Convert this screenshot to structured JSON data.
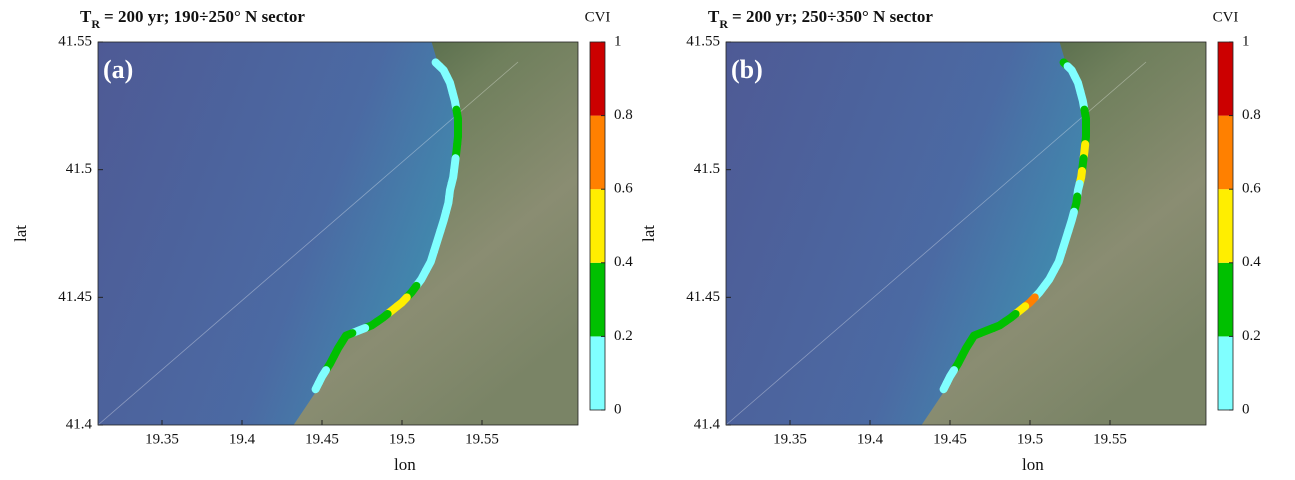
{
  "chart_data": [
    {
      "type": "coastline",
      "title_prefix": "T",
      "title_subscript": "R",
      "title_rest": "= 200 yr; 190÷250° N sector",
      "panel_label": "(a)",
      "xlabel": "lon",
      "ylabel": "lat",
      "x": [
        19.521,
        19.526,
        19.53,
        19.533,
        19.535,
        19.535,
        19.534,
        19.533,
        19.532,
        19.53,
        19.529,
        19.526,
        19.522,
        19.518,
        19.512,
        19.506,
        19.5,
        19.494,
        19.488,
        19.481,
        19.473,
        19.465,
        19.46,
        19.455,
        19.45,
        19.446
      ],
      "y": [
        41.542,
        41.539,
        41.534,
        41.527,
        41.52,
        41.513,
        41.507,
        41.502,
        41.497,
        41.492,
        41.487,
        41.48,
        41.472,
        41.464,
        41.457,
        41.452,
        41.448,
        41.445,
        41.442,
        41.439,
        41.437,
        41.435,
        41.43,
        41.424,
        41.419,
        41.414
      ],
      "values": [
        0.1,
        0.1,
        0.1,
        0.1,
        0.3,
        0.3,
        0.3,
        0.1,
        0.1,
        0.1,
        0.1,
        0.1,
        0.1,
        0.1,
        0.1,
        0.3,
        0.5,
        0.5,
        0.3,
        0.3,
        0.1,
        0.3,
        0.3,
        0.3,
        0.1,
        0.1
      ],
      "xlim": [
        19.31,
        19.61
      ],
      "ylim": [
        41.4,
        41.55
      ],
      "xticks": [
        19.35,
        19.4,
        19.45,
        19.5,
        19.55
      ],
      "yticks": [
        41.4,
        41.45,
        41.5,
        41.55
      ],
      "colorbar_label": "CVI",
      "clim": [
        0,
        1
      ],
      "cticks": [
        0,
        0.2,
        0.4,
        0.6,
        0.8,
        1
      ],
      "colors": [
        "#80ffff",
        "#00c000",
        "#ffee00",
        "#ff8000",
        "#cc0000"
      ]
    },
    {
      "type": "coastline",
      "title_prefix": "T",
      "title_subscript": "R",
      "title_rest": "= 200 yr; 250÷350° N sector",
      "panel_label": "(b)",
      "xlabel": "lon",
      "ylabel": "lat",
      "x": [
        19.521,
        19.526,
        19.53,
        19.533,
        19.535,
        19.535,
        19.534,
        19.533,
        19.532,
        19.53,
        19.529,
        19.526,
        19.522,
        19.518,
        19.512,
        19.506,
        19.5,
        19.494,
        19.488,
        19.481,
        19.473,
        19.465,
        19.46,
        19.455,
        19.45,
        19.446
      ],
      "y": [
        41.542,
        41.539,
        41.534,
        41.527,
        41.52,
        41.513,
        41.507,
        41.502,
        41.497,
        41.492,
        41.487,
        41.48,
        41.472,
        41.464,
        41.457,
        41.452,
        41.448,
        41.445,
        41.442,
        41.439,
        41.437,
        41.435,
        41.43,
        41.424,
        41.419,
        41.414
      ],
      "values": [
        0.3,
        0.1,
        0.1,
        0.1,
        0.3,
        0.3,
        0.5,
        0.3,
        0.5,
        0.1,
        0.3,
        0.1,
        0.1,
        0.1,
        0.1,
        0.1,
        0.7,
        0.5,
        0.3,
        0.3,
        0.3,
        0.3,
        0.3,
        0.3,
        0.1,
        0.1
      ],
      "xlim": [
        19.31,
        19.61
      ],
      "ylim": [
        41.4,
        41.55
      ],
      "xticks": [
        19.35,
        19.4,
        19.45,
        19.5,
        19.55
      ],
      "yticks": [
        41.4,
        41.45,
        41.5,
        41.55
      ],
      "colorbar_label": "CVI",
      "clim": [
        0,
        1
      ],
      "cticks": [
        0,
        0.2,
        0.4,
        0.6,
        0.8,
        1
      ],
      "colors": [
        "#80ffff",
        "#00c000",
        "#ffee00",
        "#ff8000",
        "#cc0000"
      ]
    }
  ]
}
